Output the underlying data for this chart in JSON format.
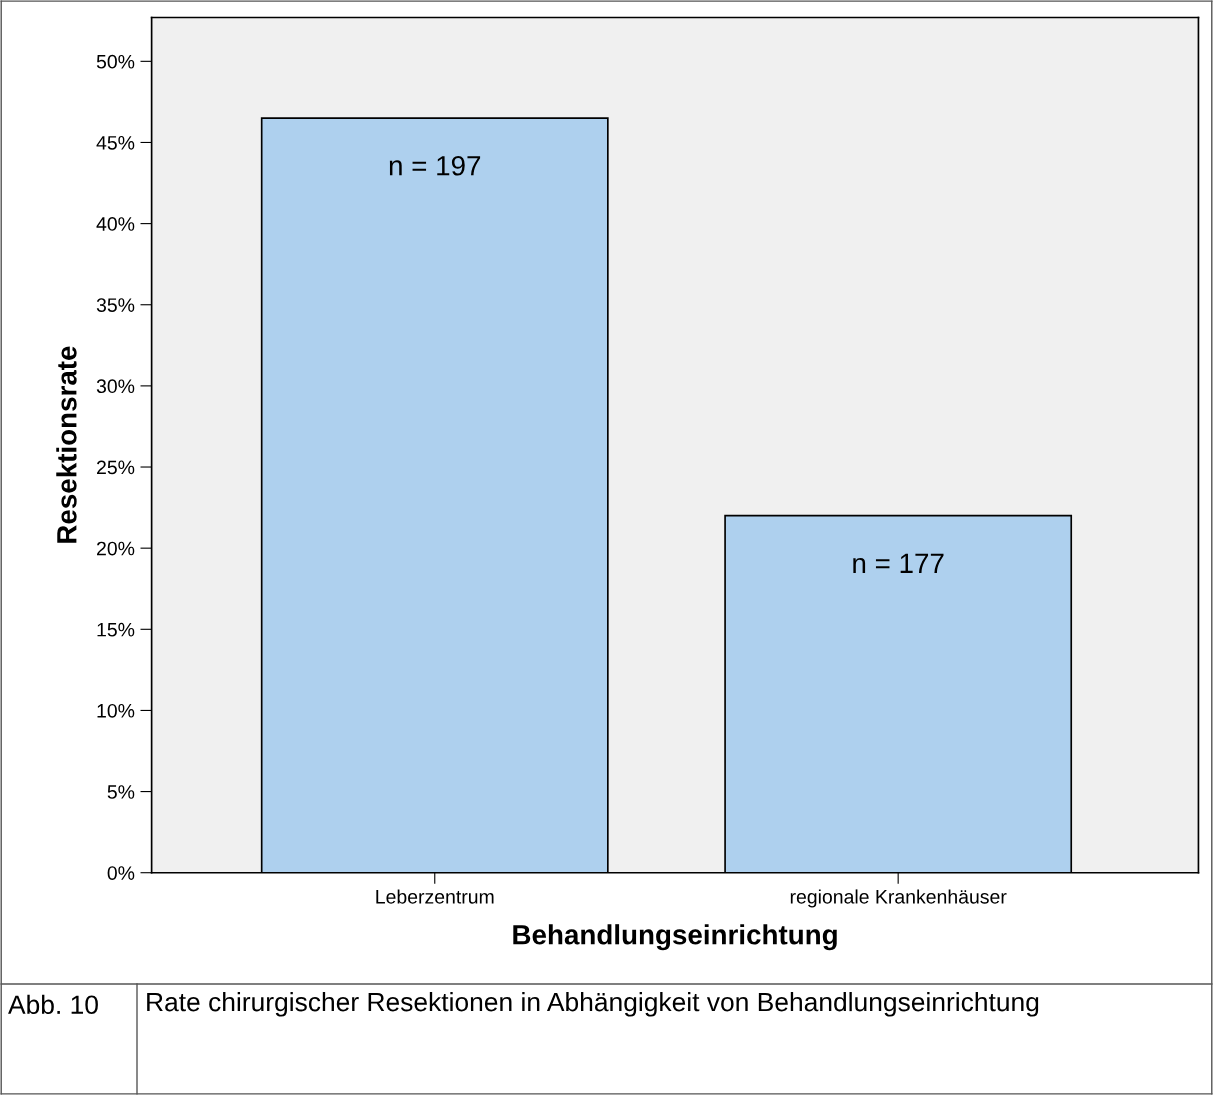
{
  "chart_data": {
    "type": "bar",
    "categories": [
      "Leberzentrum",
      "regionale Krankenhäuser"
    ],
    "values": [
      46.5,
      22.0
    ],
    "color": "#aed0ee",
    "xlabel": "Behandlungseinrichtung",
    "ylabel": "Resektionsrate",
    "ylim": [
      0,
      52.7
    ],
    "yticks": [
      {
        "value": 0,
        "label": "0%"
      },
      {
        "value": 5,
        "label": "5%"
      },
      {
        "value": 10,
        "label": "10%"
      },
      {
        "value": 15,
        "label": "15%"
      },
      {
        "value": 20,
        "label": "20%"
      },
      {
        "value": 25,
        "label": "25%"
      },
      {
        "value": 30,
        "label": "30%"
      },
      {
        "value": 35,
        "label": "35%"
      },
      {
        "value": 40,
        "label": "40%"
      },
      {
        "value": 45,
        "label": "45%"
      },
      {
        "value": 50,
        "label": "50%"
      }
    ],
    "grid": false,
    "annotations": [
      "n = 197",
      "n = 177",
      "Abb. 10",
      "Rate chirurgischer Resektionen in Abhängigkeit von Behandlungseinrichtung"
    ]
  }
}
